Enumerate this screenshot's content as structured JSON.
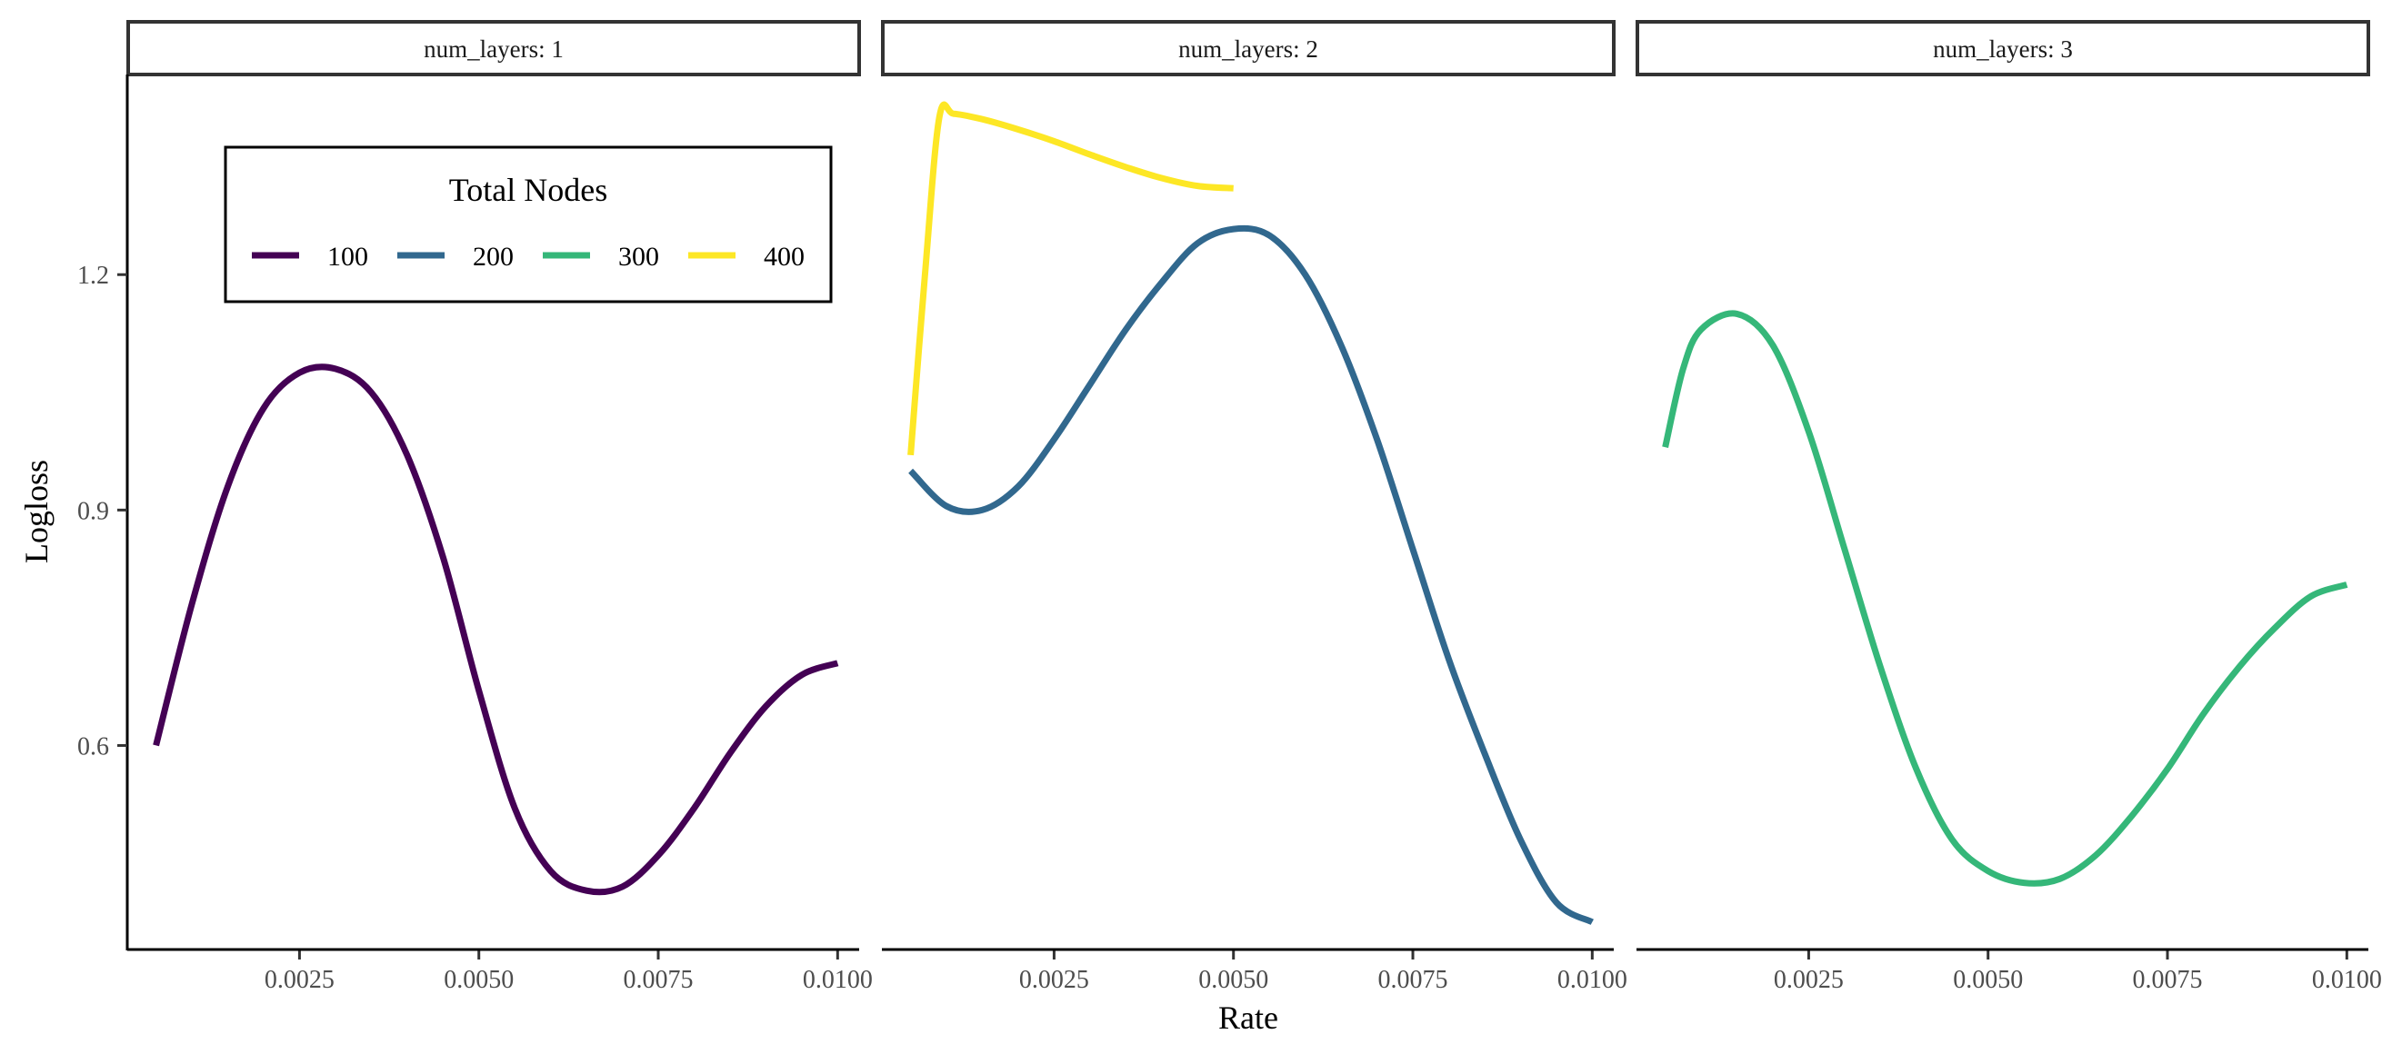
{
  "chart_data": {
    "type": "line",
    "facet_variable": "num_layers",
    "facets": [
      {
        "strip_label": "num_layers: 1",
        "series": [
          {
            "name": "100",
            "x": [
              0.0005,
              0.001,
              0.0015,
              0.002,
              0.0025,
              0.003,
              0.0035,
              0.004,
              0.0045,
              0.005,
              0.0055,
              0.006,
              0.0065,
              0.007,
              0.0075,
              0.008,
              0.0085,
              0.009,
              0.0095,
              0.01
            ],
            "y": [
              0.6,
              0.78,
              0.93,
              1.03,
              1.075,
              1.08,
              1.05,
              0.97,
              0.84,
              0.67,
              0.52,
              0.44,
              0.415,
              0.42,
              0.46,
              0.52,
              0.59,
              0.65,
              0.69,
              0.705
            ]
          }
        ]
      },
      {
        "strip_label": "num_layers: 2",
        "series": [
          {
            "name": "200",
            "x": [
              0.0005,
              0.001,
              0.0015,
              0.002,
              0.0025,
              0.003,
              0.0035,
              0.004,
              0.0045,
              0.005,
              0.0055,
              0.006,
              0.0065,
              0.007,
              0.0075,
              0.008,
              0.0085,
              0.009,
              0.0095,
              0.01
            ],
            "y": [
              0.95,
              0.905,
              0.9,
              0.93,
              0.99,
              1.06,
              1.13,
              1.19,
              1.24,
              1.258,
              1.25,
              1.2,
              1.11,
              0.99,
              0.85,
              0.71,
              0.59,
              0.48,
              0.4,
              0.375
            ]
          },
          {
            "name": "400",
            "x": [
              0.0005,
              0.0007,
              0.0009,
              0.0011,
              0.0015,
              0.002,
              0.0025,
              0.003,
              0.0035,
              0.004,
              0.0045,
              0.005
            ],
            "y": [
              0.97,
              1.2,
              1.4,
              1.405,
              1.398,
              1.385,
              1.37,
              1.353,
              1.337,
              1.323,
              1.313,
              1.31
            ]
          }
        ]
      },
      {
        "strip_label": "num_layers: 3",
        "series": [
          {
            "name": "300",
            "x": [
              0.0005,
              0.00075,
              0.001,
              0.0015,
              0.002,
              0.0025,
              0.003,
              0.0035,
              0.004,
              0.0045,
              0.005,
              0.0055,
              0.006,
              0.0065,
              0.007,
              0.0075,
              0.008,
              0.0085,
              0.009,
              0.0095,
              0.01
            ],
            "y": [
              0.98,
              1.08,
              1.13,
              1.15,
              1.11,
              1.0,
              0.85,
              0.7,
              0.57,
              0.48,
              0.44,
              0.425,
              0.43,
              0.46,
              0.51,
              0.57,
              0.64,
              0.7,
              0.75,
              0.79,
              0.805
            ]
          }
        ]
      }
    ],
    "xlabel": "Rate",
    "ylabel": "Logloss",
    "xlim": [
      0.0001,
      0.0103
    ],
    "ylim": [
      0.34,
      1.455
    ],
    "x_ticks": [
      0.0025,
      0.005,
      0.0075,
      0.01
    ],
    "x_tick_labels": [
      "0.0025",
      "0.0050",
      "0.0075",
      "0.0100"
    ],
    "y_ticks": [
      0.6,
      0.9,
      1.2
    ],
    "y_tick_labels": [
      "0.6",
      "0.9",
      "1.2"
    ],
    "grid": false,
    "legend": {
      "title": "Total Nodes",
      "placement": "top-left inside first panel",
      "items": [
        {
          "label": "100",
          "color": "#440154"
        },
        {
          "label": "200",
          "color": "#31688e"
        },
        {
          "label": "300",
          "color": "#35b779"
        },
        {
          "label": "400",
          "color": "#fde725"
        }
      ]
    },
    "colors": {
      "100": "#440154",
      "200": "#31688e",
      "300": "#35b779",
      "400": "#fde725"
    }
  }
}
